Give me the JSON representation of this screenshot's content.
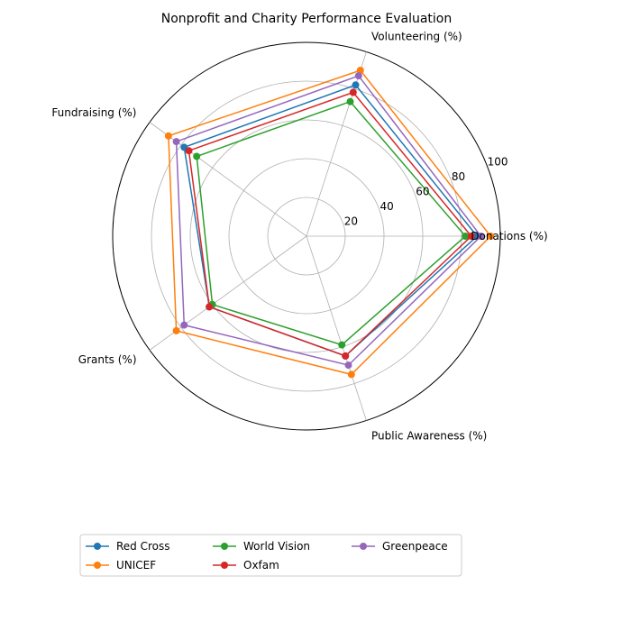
{
  "chart_data": {
    "type": "radar",
    "title": "Nonprofit and Charity Performance Evaluation",
    "axes": [
      "Donations (%)",
      "Volunteering (%)",
      "Fundraising (%)",
      "Grants (%)",
      "Public Awareness (%)"
    ],
    "rlim": [
      0,
      100
    ],
    "r_ticks": [
      20,
      40,
      60,
      80,
      100
    ],
    "grid": true,
    "legend": {
      "placement": "bottom-left",
      "columns": 3
    },
    "series": [
      {
        "name": "Red Cross",
        "color": "#1f77b4",
        "values": [
          88,
          82,
          78,
          62,
          65
        ]
      },
      {
        "name": "UNICEF",
        "color": "#ff7f0e",
        "values": [
          95,
          90,
          88,
          83,
          75
        ]
      },
      {
        "name": "World Vision",
        "color": "#2ca02c",
        "values": [
          82,
          73,
          70,
          60,
          59
        ]
      },
      {
        "name": "Oxfam",
        "color": "#d62728",
        "values": [
          85,
          78,
          75,
          62,
          65
        ]
      },
      {
        "name": "Greenpeace",
        "color": "#9467bd",
        "values": [
          90,
          87,
          83,
          78,
          70
        ]
      }
    ]
  }
}
